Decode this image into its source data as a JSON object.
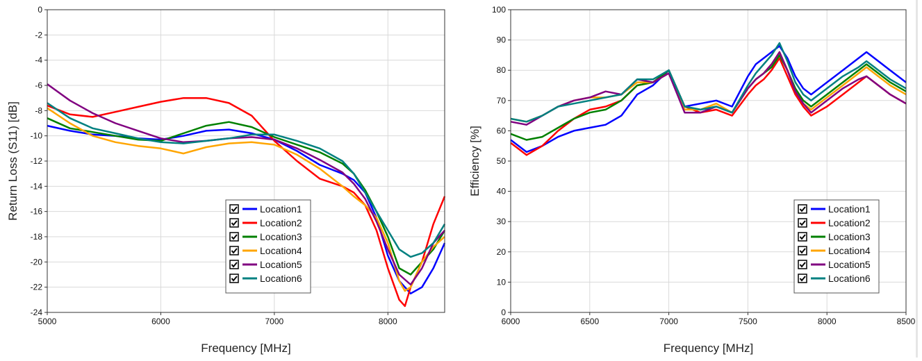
{
  "chart_data": [
    {
      "type": "line",
      "title": "",
      "xlabel": "Frequency [MHz]",
      "ylabel": "Return Loss (S11) [dB]",
      "xlim": [
        5000,
        8500
      ],
      "ylim": [
        -24,
        0
      ],
      "xticks": [
        5000,
        6000,
        7000,
        8000
      ],
      "yticks": [
        0,
        -2,
        -4,
        -6,
        -8,
        -10,
        -12,
        -14,
        -16,
        -18,
        -20,
        -22,
        -24
      ],
      "grid": true,
      "legend_position": "bottom-right",
      "series": [
        {
          "name": "Location1",
          "color": "#0000ff",
          "x": [
            5000,
            5200,
            5400,
            5600,
            5800,
            6000,
            6200,
            6400,
            6600,
            6800,
            7000,
            7200,
            7400,
            7600,
            7700,
            7800,
            7900,
            8000,
            8100,
            8200,
            8300,
            8400,
            8500
          ],
          "y": [
            -9.2,
            -9.6,
            -9.9,
            -10.0,
            -10.2,
            -10.3,
            -10.0,
            -9.6,
            -9.5,
            -9.8,
            -10.3,
            -11.2,
            -12.3,
            -13.0,
            -13.5,
            -14.5,
            -16.5,
            -19.5,
            -21.5,
            -22.5,
            -22.0,
            -20.5,
            -18.5
          ]
        },
        {
          "name": "Location2",
          "color": "#ff0000",
          "x": [
            5000,
            5200,
            5400,
            5600,
            5800,
            6000,
            6200,
            6400,
            6600,
            6800,
            7000,
            7200,
            7400,
            7600,
            7700,
            7800,
            7900,
            8000,
            8100,
            8150,
            8200,
            8300,
            8400,
            8500
          ],
          "y": [
            -7.6,
            -8.3,
            -8.5,
            -8.1,
            -7.7,
            -7.3,
            -7.0,
            -7.0,
            -7.4,
            -8.4,
            -10.4,
            -12.0,
            -13.4,
            -14.0,
            -14.5,
            -15.5,
            -17.5,
            -20.5,
            -23.0,
            -23.5,
            -22.0,
            -20.0,
            -17.0,
            -14.8
          ]
        },
        {
          "name": "Location3",
          "color": "#008000",
          "x": [
            5000,
            5200,
            5400,
            5600,
            5800,
            6000,
            6200,
            6400,
            6600,
            6800,
            7000,
            7200,
            7400,
            7600,
            7700,
            7800,
            7900,
            8000,
            8100,
            8200,
            8300,
            8400,
            8500
          ],
          "y": [
            -8.6,
            -9.4,
            -9.7,
            -10.0,
            -10.3,
            -10.4,
            -9.8,
            -9.2,
            -8.9,
            -9.3,
            -10.1,
            -10.7,
            -11.3,
            -12.2,
            -13.0,
            -14.3,
            -16.0,
            -18.0,
            -20.5,
            -21.0,
            -20.0,
            -19.0,
            -17.5
          ]
        },
        {
          "name": "Location4",
          "color": "#ffa500",
          "x": [
            5000,
            5200,
            5400,
            5600,
            5800,
            6000,
            6200,
            6400,
            6600,
            6800,
            7000,
            7200,
            7400,
            7600,
            7700,
            7800,
            7900,
            8000,
            8100,
            8150,
            8200,
            8300,
            8400,
            8500
          ],
          "y": [
            -7.8,
            -9.0,
            -10.0,
            -10.5,
            -10.8,
            -11.0,
            -11.4,
            -10.9,
            -10.6,
            -10.5,
            -10.7,
            -11.5,
            -12.6,
            -14.0,
            -14.8,
            -15.5,
            -16.5,
            -18.5,
            -21.5,
            -22.3,
            -22.0,
            -20.0,
            -18.8,
            -18.0
          ]
        },
        {
          "name": "Location5",
          "color": "#800080",
          "x": [
            5000,
            5200,
            5400,
            5600,
            5800,
            6000,
            6200,
            6400,
            6600,
            6800,
            7000,
            7200,
            7400,
            7600,
            7700,
            7800,
            7900,
            8000,
            8100,
            8200,
            8300,
            8400,
            8500
          ],
          "y": [
            -5.9,
            -7.2,
            -8.2,
            -9.0,
            -9.6,
            -10.2,
            -10.5,
            -10.4,
            -10.2,
            -10.1,
            -10.3,
            -11.0,
            -11.9,
            -12.9,
            -13.8,
            -15.0,
            -16.8,
            -19.0,
            -21.0,
            -21.8,
            -20.5,
            -18.5,
            -17.5
          ]
        },
        {
          "name": "Location6",
          "color": "#008080",
          "x": [
            5000,
            5200,
            5400,
            5600,
            5800,
            6000,
            6200,
            6400,
            6600,
            6800,
            7000,
            7200,
            7400,
            7600,
            7700,
            7800,
            7900,
            8000,
            8100,
            8200,
            8300,
            8400,
            8500
          ],
          "y": [
            -7.4,
            -8.6,
            -9.4,
            -9.8,
            -10.2,
            -10.5,
            -10.6,
            -10.4,
            -10.2,
            -9.9,
            -9.9,
            -10.4,
            -11.0,
            -12.0,
            -13.0,
            -14.5,
            -16.0,
            -17.5,
            -19.0,
            -19.6,
            -19.3,
            -18.5,
            -17.0
          ]
        }
      ]
    },
    {
      "type": "line",
      "title": "",
      "xlabel": "Frequency [MHz]",
      "ylabel": "Efficiency [%]",
      "xlim": [
        6000,
        8500
      ],
      "ylim": [
        0,
        100
      ],
      "xticks": [
        6000,
        6500,
        7000,
        7500,
        8000,
        8500
      ],
      "yticks": [
        0,
        10,
        20,
        30,
        40,
        50,
        60,
        70,
        80,
        90,
        100
      ],
      "grid": true,
      "legend_position": "bottom-right",
      "series": [
        {
          "name": "Location1",
          "color": "#0000ff",
          "x": [
            6000,
            6100,
            6200,
            6300,
            6400,
            6500,
            6600,
            6700,
            6800,
            6900,
            7000,
            7100,
            7200,
            7300,
            7400,
            7500,
            7550,
            7600,
            7650,
            7700,
            7750,
            7800,
            7850,
            7900,
            8000,
            8100,
            8200,
            8250,
            8300,
            8400,
            8500
          ],
          "y": [
            57,
            53,
            55,
            58,
            60,
            61,
            62,
            65,
            72,
            75,
            80,
            68,
            69,
            70,
            68,
            78,
            82,
            84,
            86,
            88,
            84,
            78,
            74,
            72,
            76,
            80,
            84,
            86,
            84,
            80,
            76
          ]
        },
        {
          "name": "Location2",
          "color": "#ff0000",
          "x": [
            6000,
            6100,
            6200,
            6300,
            6400,
            6500,
            6600,
            6700,
            6800,
            6900,
            7000,
            7100,
            7200,
            7300,
            7400,
            7500,
            7550,
            7600,
            7650,
            7700,
            7750,
            7800,
            7850,
            7900,
            8000,
            8100,
            8200,
            8250,
            8300,
            8400,
            8500
          ],
          "y": [
            56,
            52,
            55,
            60,
            64,
            67,
            68,
            70,
            75,
            76,
            80,
            68,
            66,
            67,
            65,
            72,
            75,
            77,
            80,
            84,
            78,
            72,
            68,
            65,
            68,
            72,
            76,
            78,
            76,
            72,
            69
          ]
        },
        {
          "name": "Location3",
          "color": "#008000",
          "x": [
            6000,
            6100,
            6200,
            6300,
            6400,
            6500,
            6600,
            6700,
            6800,
            6900,
            7000,
            7100,
            7200,
            7300,
            7400,
            7500,
            7550,
            7600,
            7650,
            7700,
            7750,
            7800,
            7850,
            7900,
            8000,
            8100,
            8200,
            8250,
            8300,
            8400,
            8500
          ],
          "y": [
            59,
            57,
            58,
            61,
            64,
            66,
            67,
            70,
            75,
            76,
            80,
            68,
            67,
            68,
            66,
            74,
            77,
            79,
            81,
            85,
            80,
            74,
            70,
            68,
            72,
            76,
            80,
            82,
            80,
            76,
            73
          ]
        },
        {
          "name": "Location4",
          "color": "#ffa500",
          "x": [
            6000,
            6100,
            6200,
            6300,
            6400,
            6500,
            6600,
            6700,
            6800,
            6900,
            7000,
            7100,
            7200,
            7300,
            7400,
            7500,
            7550,
            7600,
            7650,
            7700,
            7750,
            7800,
            7850,
            7900,
            8000,
            8100,
            8200,
            8250,
            8300,
            8400,
            8500
          ],
          "y": [
            64,
            63,
            65,
            68,
            70,
            71,
            71,
            72,
            76,
            76,
            79,
            67,
            67,
            69,
            66,
            74,
            77,
            79,
            82,
            86,
            80,
            73,
            69,
            67,
            71,
            75,
            79,
            81,
            79,
            75,
            72
          ]
        },
        {
          "name": "Location5",
          "color": "#800080",
          "x": [
            6000,
            6100,
            6200,
            6300,
            6400,
            6500,
            6600,
            6700,
            6800,
            6900,
            7000,
            7100,
            7200,
            7300,
            7400,
            7500,
            7550,
            7600,
            7650,
            7700,
            7750,
            7800,
            7850,
            7900,
            8000,
            8100,
            8200,
            8250,
            8300,
            8400,
            8500
          ],
          "y": [
            63,
            62,
            65,
            68,
            70,
            71,
            73,
            72,
            77,
            76,
            79,
            66,
            66,
            68,
            66,
            74,
            77,
            79,
            82,
            86,
            80,
            73,
            69,
            66,
            70,
            74,
            77,
            78,
            76,
            72,
            69
          ]
        },
        {
          "name": "Location6",
          "color": "#008080",
          "x": [
            6000,
            6100,
            6200,
            6300,
            6400,
            6500,
            6600,
            6700,
            6800,
            6900,
            7000,
            7100,
            7200,
            7300,
            7400,
            7500,
            7550,
            7600,
            7650,
            7700,
            7750,
            7800,
            7850,
            7900,
            8000,
            8100,
            8200,
            8250,
            8300,
            8400,
            8500
          ],
          "y": [
            64,
            63,
            65,
            68,
            69,
            70,
            71,
            72,
            77,
            77,
            80,
            68,
            67,
            68,
            66,
            75,
            79,
            82,
            85,
            89,
            83,
            76,
            72,
            70,
            74,
            78,
            81,
            83,
            81,
            77,
            74
          ]
        }
      ]
    }
  ]
}
